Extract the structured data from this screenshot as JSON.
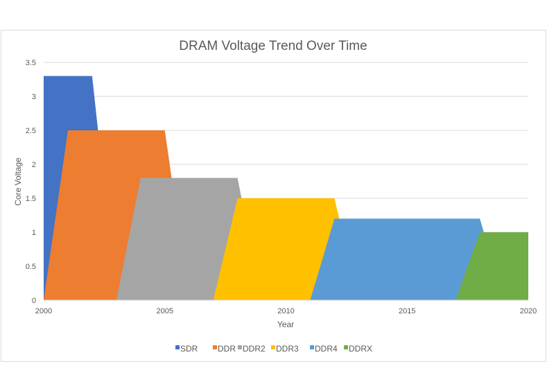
{
  "chart_data": {
    "type": "area",
    "title": "DRAM Voltage Trend Over Time",
    "xlabel": "Year",
    "ylabel": "Core  Voltage",
    "xlim": [
      2000,
      2020
    ],
    "ylim": [
      0,
      3.5
    ],
    "xticks": [
      2000,
      2005,
      2010,
      2015,
      2020
    ],
    "yticks": [
      0,
      0.5,
      1,
      1.5,
      2,
      2.5,
      3,
      3.5
    ],
    "ytick_labels": [
      "0",
      "0.5",
      "1",
      "1.5",
      "2",
      "2.5",
      "3",
      "3.5"
    ],
    "grid": true,
    "legend_position": "bottom",
    "series": [
      {
        "name": "SDR",
        "color": "#4472c4",
        "points": [
          [
            2000,
            0
          ],
          [
            2000,
            3.3
          ],
          [
            2002,
            3.3
          ],
          [
            2003,
            0
          ]
        ]
      },
      {
        "name": "DDR",
        "color": "#ed7d31",
        "points": [
          [
            2000,
            0
          ],
          [
            2001,
            2.5
          ],
          [
            2005,
            2.5
          ],
          [
            2006,
            0
          ]
        ]
      },
      {
        "name": "DDR2",
        "color": "#a5a5a5",
        "points": [
          [
            2003,
            0
          ],
          [
            2004,
            1.8
          ],
          [
            2008,
            1.8
          ],
          [
            2009,
            0
          ]
        ]
      },
      {
        "name": "DDR3",
        "color": "#ffc000",
        "points": [
          [
            2007,
            0
          ],
          [
            2008,
            1.5
          ],
          [
            2012,
            1.5
          ],
          [
            2013,
            0
          ]
        ]
      },
      {
        "name": "DDR4",
        "color": "#5b9bd5",
        "points": [
          [
            2011,
            0
          ],
          [
            2012,
            1.2
          ],
          [
            2018,
            1.2
          ],
          [
            2019,
            0
          ]
        ]
      },
      {
        "name": "DDRX",
        "color": "#70ad47",
        "points": [
          [
            2017,
            0
          ],
          [
            2018,
            1
          ],
          [
            2020,
            1
          ],
          [
            2020,
            0
          ]
        ]
      }
    ]
  }
}
